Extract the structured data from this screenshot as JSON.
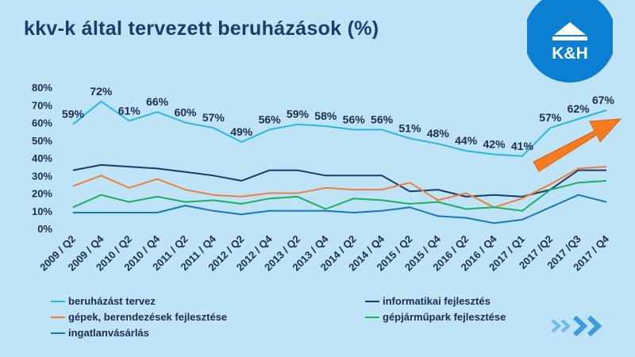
{
  "title": "kkv-k által tervezett beruházások (%)",
  "logo": {
    "brand": "K&H",
    "colors": {
      "circle": "#0b7fd1",
      "text": "#ffffff"
    }
  },
  "chart_data": {
    "type": "line",
    "title": "kkv-k által tervezett beruházások (%)",
    "categories": [
      "2009 / Q2",
      "2009 / Q4",
      "2010 / Q2",
      "2010 / Q4",
      "2011 / Q2",
      "2011 / Q4",
      "2012 / Q2",
      "2012 / Q4",
      "2013 / Q2",
      "2013 / Q4",
      "2014 / Q2",
      "2014 / Q4",
      "2015 / Q2",
      "2015 / Q4",
      "2016 / Q2",
      "2016 / Q4",
      "2017 / Q1",
      "2017 /Q2",
      "2017 /Q3",
      "2017 / Q4"
    ],
    "ylim": [
      0,
      80
    ],
    "yticks": [
      "0%",
      "10%",
      "20%",
      "30%",
      "40%",
      "50%",
      "60%",
      "70%",
      "80%"
    ],
    "grid": false,
    "legend_position": "bottom",
    "series": [
      {
        "name": "beruházást  tervez",
        "color": "#29b6e8",
        "labeled": true,
        "values": [
          59,
          72,
          61,
          66,
          60,
          57,
          49,
          56,
          59,
          58,
          56,
          56,
          51,
          48,
          44,
          42,
          41,
          57,
          62,
          67
        ],
        "labels": [
          "59%",
          "72%",
          "61%",
          "66%",
          "60%",
          "57%",
          "49%",
          "56%",
          "59%",
          "58%",
          "56%",
          "56%",
          "51%",
          "48%",
          "44%",
          "42%",
          "41%",
          "57%",
          "62%",
          "67%"
        ]
      },
      {
        "name": "informatikai fejlesztés",
        "color": "#1a3d6e",
        "labeled": false,
        "values": [
          33,
          36,
          35,
          34,
          32,
          30,
          27,
          33,
          33,
          30,
          30,
          30,
          21,
          22,
          18,
          19,
          18,
          22,
          33,
          33
        ]
      },
      {
        "name": "gépek, berendezések fejlesztése",
        "color": "#f07f3c",
        "labeled": false,
        "values": [
          24,
          30,
          23,
          28,
          22,
          19,
          18,
          20,
          20,
          23,
          22,
          22,
          26,
          16,
          20,
          12,
          17,
          25,
          34,
          35
        ]
      },
      {
        "name": "gépjárműpark fejlesztése",
        "color": "#1cb061",
        "labeled": false,
        "values": [
          12,
          19,
          15,
          18,
          15,
          16,
          14,
          17,
          18,
          11,
          17,
          16,
          14,
          15,
          11,
          12,
          10,
          22,
          26,
          27
        ]
      },
      {
        "name": "ingatlanvásárlás",
        "color": "#1577c2",
        "labeled": false,
        "values": [
          9,
          9,
          9,
          9,
          13,
          10,
          8,
          10,
          10,
          10,
          9,
          10,
          12,
          7,
          6,
          3,
          5,
          12,
          19,
          15
        ]
      }
    ],
    "annotation": {
      "shape": "arrow",
      "color": "#f47b20"
    }
  }
}
